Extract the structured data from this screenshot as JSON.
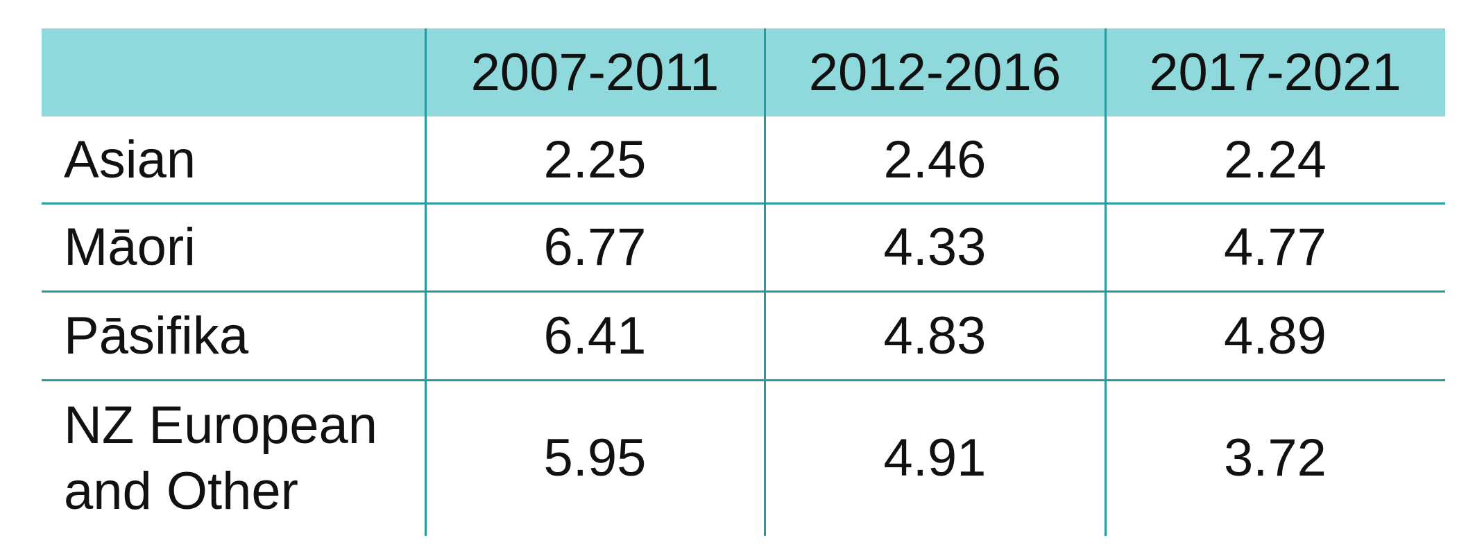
{
  "table": {
    "header": [
      "2007-2011",
      "2012-2016",
      "2017-2021"
    ],
    "rows": [
      [
        "Asian",
        2.25,
        2.46,
        2.24
      ],
      [
        "Māori",
        6.77,
        4.33,
        4.77
      ],
      [
        "Pāsifika",
        6.41,
        4.83,
        4.89
      ],
      [
        "NZ European and Other",
        5.95,
        4.91,
        3.72
      ]
    ]
  }
}
